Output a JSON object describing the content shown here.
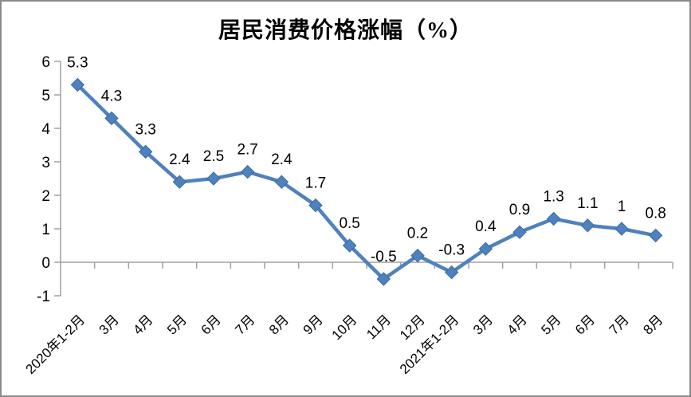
{
  "window": {
    "background_color": "#ffffff",
    "frame_border_color": "#8a8a8a"
  },
  "chart_data": {
    "type": "line",
    "title": "居民消费价格涨幅（%）",
    "categories": [
      "2020年1-2月",
      "3月",
      "4月",
      "5月",
      "6月",
      "7月",
      "8月",
      "9月",
      "10月",
      "11月",
      "12月",
      "2021年1-2月",
      "3月",
      "4月",
      "5月",
      "6月",
      "7月",
      "8月"
    ],
    "values": [
      5.3,
      4.3,
      3.3,
      2.4,
      2.5,
      2.7,
      2.4,
      1.7,
      0.5,
      -0.5,
      0.2,
      -0.3,
      0.4,
      0.9,
      1.3,
      1.1,
      1,
      0.8
    ],
    "point_labels": [
      "5.3",
      "4.3",
      "3.3",
      "2.4",
      "2.5",
      "2.7",
      "2.4",
      "1.7",
      "0.5",
      "-0.5",
      "0.2",
      "-0.3",
      "0.4",
      "0.9",
      "1.3",
      "1.1",
      "1",
      "0.8"
    ],
    "yticks": [
      -1,
      0,
      1,
      2,
      3,
      4,
      5,
      6
    ],
    "ylim": [
      -1,
      6
    ],
    "xlabel": "",
    "ylabel": "",
    "grid": "off",
    "legend": "none",
    "x_label_rotation_deg": 45,
    "series_color": "#4f81bd",
    "marker_edge_color": "#3a6aa5",
    "marker_shape": "diamond",
    "axis_color": "#a0a0a0",
    "label_color": "#000000"
  }
}
